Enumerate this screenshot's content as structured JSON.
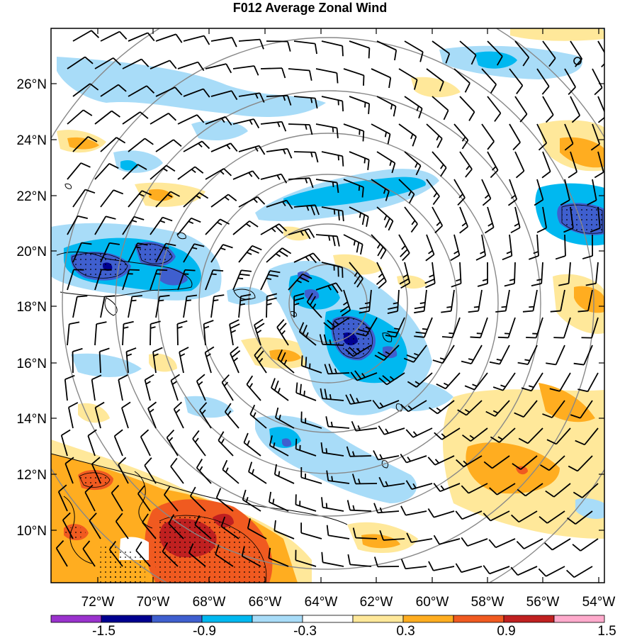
{
  "title": "F012 Average Zonal Wind",
  "lat_labels": [
    "26°N",
    "24°N",
    "22°N",
    "20°N",
    "18°N",
    "16°N",
    "14°N",
    "12°N",
    "10°N"
  ],
  "lon_labels": [
    "72°W",
    "70°W",
    "68°W",
    "66°W",
    "64°W",
    "62°W",
    "60°W",
    "58°W",
    "56°W",
    "54°W"
  ],
  "colorbar": {
    "labels": [
      "-1.5",
      "-0.9",
      "-0.3",
      "0.3",
      "0.9",
      "1.5"
    ],
    "colors": [
      "#9a32cd",
      "#000090",
      "#3f5fcf",
      "#00b8f0",
      "#a8dcf8",
      "#ffffff",
      "#ffe89a",
      "#ffad20",
      "#f05a20",
      "#c02020",
      "#ffaacc"
    ]
  },
  "map": {
    "lon_range": [
      -74,
      -53.8
    ],
    "lat_range": [
      8.2,
      28
    ],
    "range_ring_center": [
      -63.0,
      18.2
    ],
    "colors": {
      "neg_light": "#a8dcf8",
      "neg_mid": "#00b8f0",
      "neg_strong": "#3f5fcf",
      "neg_max": "#000090",
      "pos_light": "#ffe89a",
      "pos_mid": "#ffad20",
      "pos_strong": "#f05a20",
      "pos_max": "#c02020"
    }
  }
}
